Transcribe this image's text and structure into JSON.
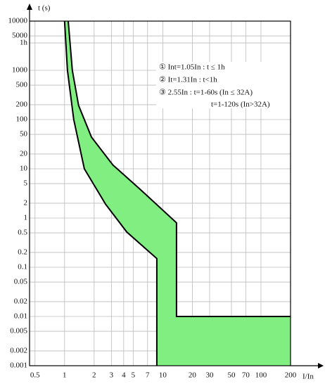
{
  "chart_data": {
    "type": "band",
    "y_label": "t (s)",
    "x_label": "I/In",
    "log_x": true,
    "log_y": true,
    "grid": true,
    "color": "#80ee80",
    "xlim": [
      0.44,
      200
    ],
    "ylim": [
      0.001,
      10000
    ],
    "xticks": [
      0.5,
      1,
      2,
      3,
      4,
      5,
      7,
      10,
      20,
      30,
      50,
      70,
      100,
      200
    ],
    "yticks": [
      0.001,
      0.002,
      0.005,
      0.01,
      0.02,
      0.05,
      0.1,
      0.2,
      0.5,
      1,
      2,
      5,
      10,
      20,
      50,
      100,
      200,
      500,
      1000,
      {
        "value": 3600,
        "label": "1h"
      },
      5000,
      10000
    ],
    "series": [
      {
        "x": [
          1.09,
          1.2,
          1.39,
          1.88,
          3.1,
          6.0,
          13.8,
          13.8,
          200
        ],
        "values": [
          10000,
          1000,
          193,
          44,
          12,
          3.7,
          0.8,
          0.01,
          0.01
        ]
      },
      {
        "x": [
          1,
          1.07,
          1.24,
          1.59,
          2.62,
          4.3,
          8.7,
          8.7
        ],
        "values": [
          10000,
          1000,
          100,
          10,
          1.9,
          0.52,
          0.15,
          0.001
        ]
      }
    ],
    "annotations": [
      "① Int=1.05In : t ≤ 1h",
      "② It=1.31In : t<1h",
      "③ 2.55In : t=1-60s (In ≤ 32A)",
      "t=1-120s (In>32A)"
    ]
  }
}
